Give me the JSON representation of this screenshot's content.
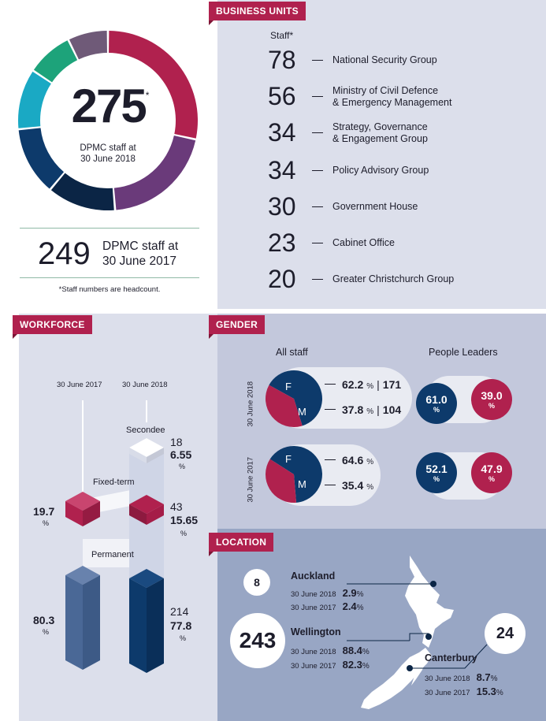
{
  "colors": {
    "crimson": "#b0214e",
    "navy": "#0d3a6b",
    "purple": "#6a3a7a",
    "teal": "#1aa9c4",
    "green": "#1da37a",
    "mauve": "#6f5a78",
    "darknavy": "#0b2545"
  },
  "headline": {
    "value": "275",
    "asterisk": "*",
    "caption_line1": "DPMC staff at",
    "caption_line2": "30 June 2018",
    "prev_value": "249",
    "prev_caption_line1": "DPMC staff at",
    "prev_caption_line2": "30 June 2017",
    "footnote": "*Staff numbers are headcount."
  },
  "business_units": {
    "tag": "BUSINESS UNITS",
    "staff_header": "Staff*",
    "items": [
      {
        "value": "78",
        "name_line1": "National Security Group",
        "name_line2": ""
      },
      {
        "value": "56",
        "name_line1": "Ministry of Civil Defence",
        "name_line2": "& Emergency Management"
      },
      {
        "value": "34",
        "name_line1": "Strategy, Governance",
        "name_line2": "& Engagement Group"
      },
      {
        "value": "34",
        "name_line1": "Policy Advisory Group",
        "name_line2": ""
      },
      {
        "value": "30",
        "name_line1": "Government House",
        "name_line2": ""
      },
      {
        "value": "23",
        "name_line1": "Cabinet Office",
        "name_line2": ""
      },
      {
        "value": "20",
        "name_line1": "Greater Christchurch Group",
        "name_line2": ""
      }
    ]
  },
  "workforce": {
    "tag": "WORKFORCE",
    "col_2017": "30 June 2017",
    "col_2018": "30 June 2018",
    "secondee_label": "Secondee",
    "fixed_label": "Fixed-term",
    "permanent_label": "Permanent",
    "secondee_2018_count": "18",
    "secondee_2018_pct": "6.55",
    "fixed_2017_pct": "19.7",
    "fixed_2018_count": "43",
    "fixed_2018_pct": "15.65",
    "perm_2017_pct": "80.3",
    "perm_2018_count": "214",
    "perm_2018_pct": "77.8",
    "pct_sign": "%"
  },
  "gender": {
    "tag": "GENDER",
    "all_staff": "All staff",
    "people_leaders": "People Leaders",
    "year_2018": "30 June 2018",
    "year_2017": "30 June 2017",
    "f": "F",
    "m": "M",
    "f_2018_pct": "62.2",
    "f_2018_count": "171",
    "m_2018_pct": "37.8",
    "m_2018_count": "104",
    "f_2017_pct": "64.6",
    "m_2017_pct": "35.4",
    "leaders_f_2018": "61.0",
    "leaders_m_2018": "39.0",
    "leaders_f_2017": "52.1",
    "leaders_m_2017": "47.9",
    "pct_sign": "%",
    "sep": "|"
  },
  "location": {
    "tag": "LOCATION",
    "auckland": {
      "count": "8",
      "name": "Auckland",
      "d2018": "30 June 2018",
      "v2018": "2.9",
      "d2017": "30 June 2017",
      "v2017": "2.4"
    },
    "wellington": {
      "count": "243",
      "name": "Wellington",
      "d2018": "30 June 2018",
      "v2018": "88.4",
      "d2017": "30 June 2017",
      "v2017": "82.3"
    },
    "canterbury": {
      "count": "24",
      "name": "Canterbury",
      "d2018": "30 June 2018",
      "v2018": "8.7",
      "d2017": "30 June 2017",
      "v2017": "15.3"
    },
    "pct_sign": "%"
  }
}
